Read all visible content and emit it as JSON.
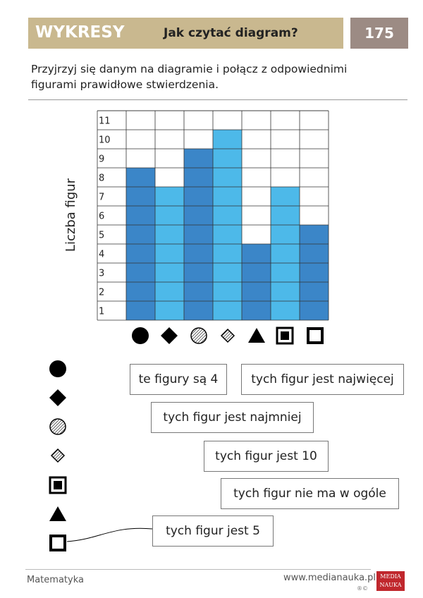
{
  "header": {
    "section": "WYKRESY",
    "title": "Jak czytać diagram?",
    "page": "175"
  },
  "instruction": "Przyjrzyj się danym na diagramie i połącz z odpowiednimi figurami prawidłowe stwierdzenia.",
  "chart_data": {
    "type": "bar",
    "ylabel": "Liczba figur",
    "values": [
      8,
      7,
      9,
      10,
      4,
      7,
      5
    ],
    "colors": [
      "#3b86c8",
      "#4db9e9",
      "#3b86c8",
      "#4db9e9",
      "#3b86c8",
      "#4db9e9",
      "#3b86c8"
    ],
    "ylim": [
      0,
      11
    ],
    "yticks": [
      1,
      2,
      3,
      4,
      5,
      6,
      7,
      8,
      9,
      10,
      11
    ],
    "grid": true
  },
  "statements": [
    "te figury są 4",
    "tych figur jest najwięcej",
    "tych figur jest najmniej",
    "tych figur jest 10",
    "tych figur nie ma w ogóle",
    "tych figur jest 5"
  ],
  "footer": {
    "subject": "Matematyka",
    "url": "www.medianauka.pl",
    "marks": "®©",
    "logo_top": "MEDIA",
    "logo_bottom": "NAUKA"
  }
}
